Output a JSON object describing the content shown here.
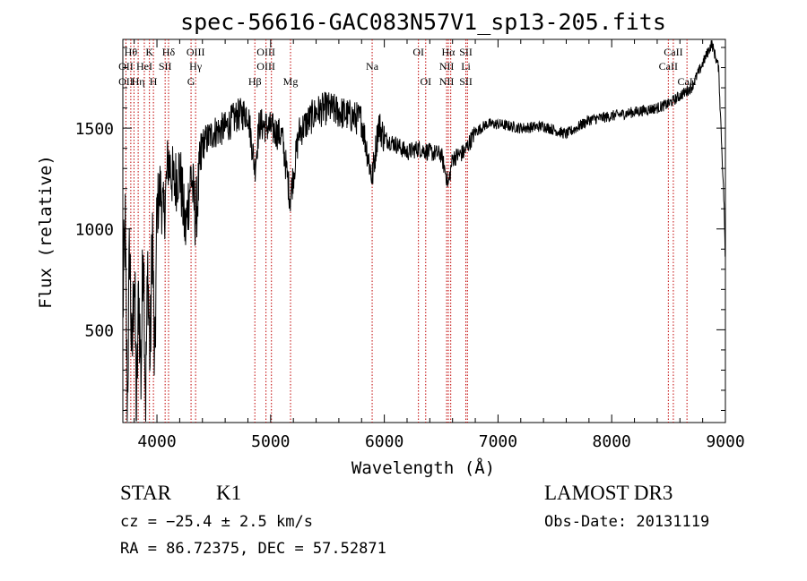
{
  "chart_data": {
    "type": "line",
    "title": "spec-56616-GAC083N57V1_sp13-205.fits",
    "xlabel": "Wavelength (Å)",
    "ylabel": "Flux (relative)",
    "xlim": [
      3700,
      9000
    ],
    "ylim": [
      40,
      1940
    ],
    "xticks": [
      4000,
      5000,
      6000,
      7000,
      8000,
      9000
    ],
    "yticks": [
      500,
      1000,
      1500
    ],
    "series": [
      {
        "name": "flux",
        "anchors": [
          [
            3700,
            600
          ],
          [
            3720,
            1020
          ],
          [
            3740,
            120
          ],
          [
            3760,
            950
          ],
          [
            3780,
            300
          ],
          [
            3800,
            850
          ],
          [
            3820,
            80
          ],
          [
            3840,
            700
          ],
          [
            3860,
            260
          ],
          [
            3880,
            1000
          ],
          [
            3900,
            150
          ],
          [
            3920,
            820
          ],
          [
            3940,
            330
          ],
          [
            3960,
            1050
          ],
          [
            3980,
            220
          ],
          [
            4000,
            1100
          ],
          [
            4030,
            1200
          ],
          [
            4060,
            1050
          ],
          [
            4100,
            1350
          ],
          [
            4150,
            1220
          ],
          [
            4200,
            1300
          ],
          [
            4250,
            980
          ],
          [
            4300,
            1280
          ],
          [
            4340,
            1050
          ],
          [
            4400,
            1420
          ],
          [
            4500,
            1480
          ],
          [
            4600,
            1500
          ],
          [
            4700,
            1560
          ],
          [
            4800,
            1580
          ],
          [
            4861,
            1300
          ],
          [
            4900,
            1520
          ],
          [
            5000,
            1500
          ],
          [
            5100,
            1460
          ],
          [
            5172,
            1150
          ],
          [
            5250,
            1480
          ],
          [
            5400,
            1580
          ],
          [
            5500,
            1600
          ],
          [
            5600,
            1580
          ],
          [
            5700,
            1560
          ],
          [
            5800,
            1540
          ],
          [
            5893,
            1250
          ],
          [
            5950,
            1520
          ],
          [
            6000,
            1450
          ],
          [
            6100,
            1420
          ],
          [
            6200,
            1380
          ],
          [
            6300,
            1400
          ],
          [
            6400,
            1380
          ],
          [
            6500,
            1370
          ],
          [
            6563,
            1220
          ],
          [
            6600,
            1350
          ],
          [
            6700,
            1380
          ],
          [
            6800,
            1480
          ],
          [
            6900,
            1520
          ],
          [
            7000,
            1520
          ],
          [
            7200,
            1500
          ],
          [
            7400,
            1510
          ],
          [
            7600,
            1470
          ],
          [
            7800,
            1540
          ],
          [
            8000,
            1560
          ],
          [
            8200,
            1580
          ],
          [
            8400,
            1600
          ],
          [
            8500,
            1620
          ],
          [
            8600,
            1660
          ],
          [
            8700,
            1700
          ],
          [
            8800,
            1820
          ],
          [
            8880,
            1920
          ],
          [
            8940,
            1800
          ],
          [
            8990,
            1100
          ],
          [
            9000,
            780
          ]
        ]
      }
    ],
    "lines": [
      {
        "wave": 3727,
        "labels": [
          "",
          "OII",
          "OII"
        ]
      },
      {
        "wave": 3770,
        "labels": [
          "Hθ",
          "",
          ""
        ]
      },
      {
        "wave": 3798,
        "labels": [
          "",
          "",
          ""
        ]
      },
      {
        "wave": 3835,
        "labels": [
          "",
          "",
          "Hη"
        ]
      },
      {
        "wave": 3889,
        "labels": [
          "",
          "HeI",
          ""
        ]
      },
      {
        "wave": 3934,
        "labels": [
          "K",
          "",
          ""
        ]
      },
      {
        "wave": 3969,
        "labels": [
          "",
          "",
          "H"
        ]
      },
      {
        "wave": 4072,
        "labels": [
          "",
          "SII",
          ""
        ]
      },
      {
        "wave": 4102,
        "labels": [
          "Hδ",
          "",
          ""
        ]
      },
      {
        "wave": 4300,
        "labels": [
          "",
          "",
          "G"
        ]
      },
      {
        "wave": 4340,
        "labels": [
          "OIII",
          "Hγ",
          ""
        ]
      },
      {
        "wave": 4861,
        "labels": [
          "",
          "",
          "Hβ"
        ]
      },
      {
        "wave": 4959,
        "labels": [
          "OIII",
          "OIII",
          ""
        ]
      },
      {
        "wave": 5007,
        "labels": [
          "",
          "",
          ""
        ]
      },
      {
        "wave": 5175,
        "labels": [
          "",
          "",
          "Mg"
        ]
      },
      {
        "wave": 5893,
        "labels": [
          "",
          "Na",
          ""
        ]
      },
      {
        "wave": 6300,
        "labels": [
          "OI",
          "",
          ""
        ]
      },
      {
        "wave": 6364,
        "labels": [
          "",
          "",
          "OI"
        ]
      },
      {
        "wave": 6548,
        "labels": [
          "",
          "NII",
          "NII"
        ]
      },
      {
        "wave": 6563,
        "labels": [
          "Hα",
          "",
          ""
        ]
      },
      {
        "wave": 6584,
        "labels": [
          "",
          "",
          ""
        ]
      },
      {
        "wave": 6717,
        "labels": [
          "SII",
          "Li",
          "SII"
        ]
      },
      {
        "wave": 6731,
        "labels": [
          "",
          "",
          ""
        ]
      },
      {
        "wave": 8498,
        "labels": [
          "",
          "CaII",
          ""
        ]
      },
      {
        "wave": 8542,
        "labels": [
          "CaII",
          "",
          ""
        ]
      },
      {
        "wave": 8662,
        "labels": [
          "",
          "",
          "CaII"
        ]
      }
    ]
  },
  "info": {
    "object_class": "STAR",
    "subclass": "K1",
    "redshift": "cz = −25.4 ± 2.5 km/s",
    "coords": "RA =  86.72375, DEC =  57.52871",
    "survey": "LAMOST DR3",
    "obs_date": "Obs-Date: 20131119"
  }
}
